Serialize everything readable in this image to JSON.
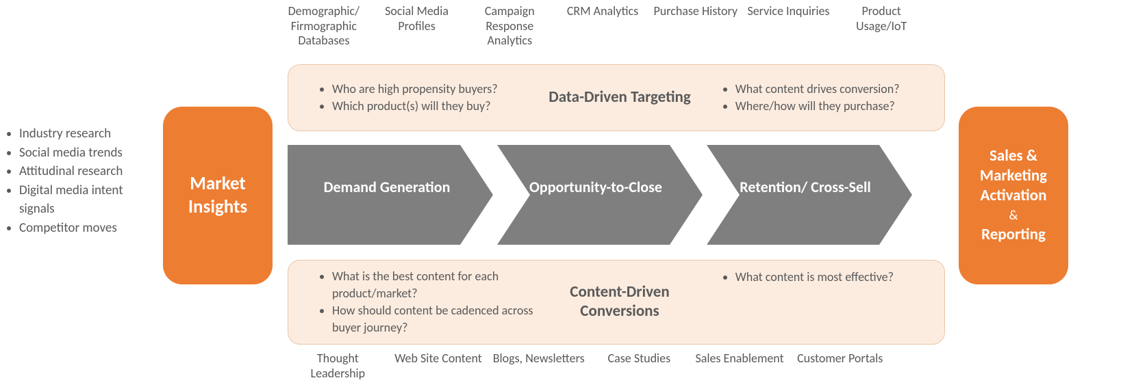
{
  "colors": {
    "orange": "#ed7d31",
    "cream_bg": "#fcece0",
    "cream_border": "#e8c7aa",
    "grey_shape": "#7f7f7f",
    "text_grey": "#595959",
    "white": "#ffffff"
  },
  "left_bullets": [
    "Industry research",
    "Social media trends",
    "Attitudinal research",
    "Digital media intent signals",
    "Competitor moves"
  ],
  "market_insights": "Market Insights",
  "sales_marketing": {
    "l1": "Sales &",
    "l2": "Marketing",
    "l3": "Activation",
    "amp": "&",
    "l4": "Reporting"
  },
  "top_sources": [
    "Demographic/ Firmographic Databases",
    "Social Media Profiles",
    "Campaign Response Analytics",
    "CRM Analytics",
    "Purchase History",
    "Service Inquiries",
    "Product Usage/IoT"
  ],
  "bottom_sources": [
    "Thought Leadership",
    "Web Site Content",
    "Blogs, Newsletters",
    "Case Studies",
    "Sales Enablement",
    "Customer Portals"
  ],
  "targeting": {
    "title": "Data-Driven Targeting",
    "left_q": [
      "Who are high propensity buyers?",
      "Which product(s) will they buy?"
    ],
    "right_q": [
      "What content drives conversion?",
      "Where/how will they purchase?"
    ]
  },
  "conversions": {
    "title": "Content-Driven Conversions",
    "left_q": [
      "What is the best content for each product/market?",
      "How should content be cadenced across buyer journey?"
    ],
    "right_q": [
      "What content is most effective?"
    ]
  },
  "chevrons": {
    "labels": [
      "Demand Generation",
      "Opportunity-to-Close",
      "Retention/ Cross-Sell"
    ],
    "fill": "#7f7f7f",
    "gap": 6,
    "arrow_width": 300,
    "head_depth": 48,
    "height": 150
  }
}
